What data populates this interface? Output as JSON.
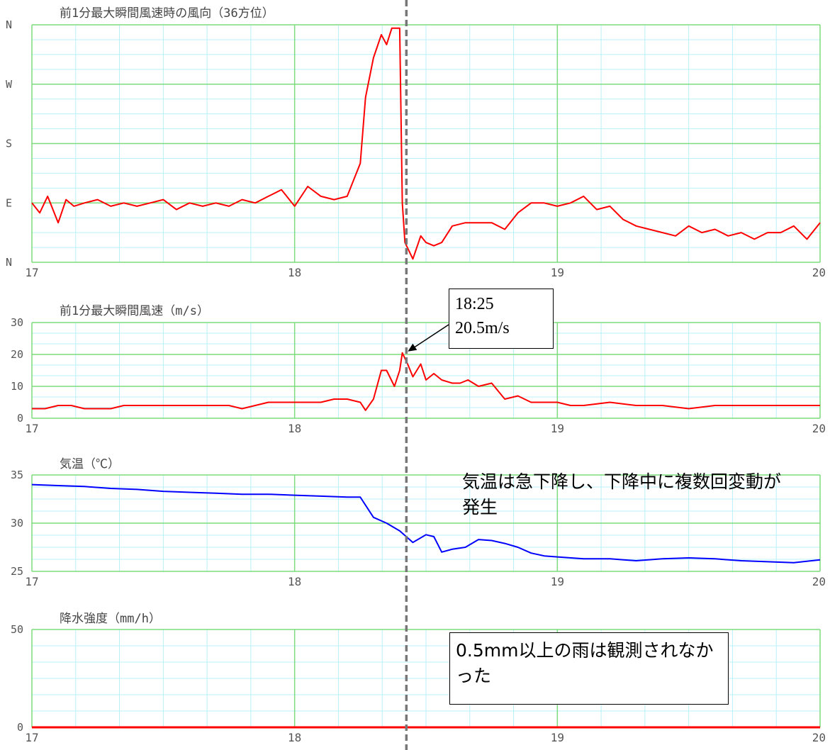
{
  "chart_data": [
    {
      "type": "line",
      "title": "前1分最大瞬間風速時の風向（36方位）",
      "yticks": [
        "N",
        "W",
        "S",
        "E",
        "N"
      ],
      "ylim": [
        0,
        360
      ],
      "xticks": [
        "17",
        "18",
        "19",
        "20"
      ],
      "xlim": [
        17,
        20
      ],
      "grid": true,
      "series": [
        {
          "color": "#ff0000",
          "x": [
            17.0,
            17.03,
            17.06,
            17.1,
            17.13,
            17.16,
            17.2,
            17.25,
            17.3,
            17.35,
            17.4,
            17.45,
            17.5,
            17.55,
            17.6,
            17.65,
            17.7,
            17.75,
            17.8,
            17.85,
            17.9,
            17.95,
            18.0,
            18.05,
            18.1,
            18.15,
            18.2,
            18.25,
            18.27,
            18.3,
            18.33,
            18.35,
            18.37,
            18.4,
            18.41,
            18.42,
            18.45,
            18.48,
            18.5,
            18.53,
            18.56,
            18.6,
            18.65,
            18.7,
            18.75,
            18.8,
            18.85,
            18.9,
            18.95,
            19.0,
            19.05,
            19.1,
            19.15,
            19.2,
            19.25,
            19.3,
            19.35,
            19.4,
            19.45,
            19.5,
            19.55,
            19.6,
            19.65,
            19.7,
            19.75,
            19.8,
            19.85,
            19.9,
            19.95,
            20.0
          ],
          "values": [
            90,
            75,
            100,
            60,
            95,
            85,
            90,
            95,
            85,
            90,
            85,
            90,
            95,
            80,
            90,
            85,
            90,
            85,
            95,
            90,
            100,
            110,
            85,
            115,
            100,
            95,
            100,
            150,
            250,
            310,
            345,
            330,
            355,
            355,
            90,
            30,
            5,
            40,
            30,
            25,
            30,
            55,
            60,
            60,
            60,
            50,
            75,
            90,
            90,
            85,
            90,
            100,
            80,
            85,
            65,
            55,
            50,
            45,
            40,
            55,
            45,
            50,
            40,
            45,
            35,
            45,
            45,
            55,
            35,
            60
          ]
        }
      ]
    },
    {
      "type": "line",
      "title": "前1分最大瞬間風速（m/s）",
      "yticks": [
        "0",
        "10",
        "20",
        "30"
      ],
      "ylim": [
        0,
        30
      ],
      "xticks": [
        "17",
        "18",
        "19",
        "20"
      ],
      "xlim": [
        17,
        20
      ],
      "grid": true,
      "series": [
        {
          "color": "#ff0000",
          "x": [
            17.0,
            17.05,
            17.1,
            17.15,
            17.2,
            17.25,
            17.3,
            17.35,
            17.4,
            17.45,
            17.5,
            17.55,
            17.6,
            17.65,
            17.7,
            17.75,
            17.8,
            17.85,
            17.9,
            17.95,
            18.0,
            18.05,
            18.1,
            18.15,
            18.2,
            18.25,
            18.27,
            18.3,
            18.33,
            18.35,
            18.38,
            18.4,
            18.41,
            18.43,
            18.45,
            18.48,
            18.5,
            18.53,
            18.56,
            18.6,
            18.63,
            18.66,
            18.7,
            18.75,
            18.8,
            18.85,
            18.9,
            18.95,
            19.0,
            19.05,
            19.1,
            19.2,
            19.3,
            19.4,
            19.5,
            19.6,
            19.7,
            19.8,
            19.9,
            20.0
          ],
          "values": [
            3,
            3,
            4,
            4,
            3,
            3,
            3,
            4,
            4,
            4,
            4,
            4,
            4,
            4,
            4,
            4,
            3,
            4,
            5,
            5,
            5,
            5,
            5,
            6,
            6,
            5,
            2.5,
            6,
            15,
            15,
            10,
            15,
            20.5,
            17,
            13,
            17,
            12,
            14,
            12,
            11,
            11,
            12,
            10,
            11,
            6,
            7,
            5,
            5,
            5,
            4,
            4,
            5,
            4,
            4,
            3,
            4,
            4,
            4,
            4,
            4
          ]
        }
      ],
      "callout": {
        "line1": "18:25",
        "line2": "20.5m/s",
        "x": 18.42,
        "y": 20.5
      }
    },
    {
      "type": "line",
      "title": "気温（℃）",
      "yticks": [
        "25",
        "30",
        "35"
      ],
      "ylim": [
        25,
        35
      ],
      "xticks": [
        "17",
        "18",
        "19",
        "20"
      ],
      "xlim": [
        17,
        20
      ],
      "grid": true,
      "series": [
        {
          "color": "#0000ff",
          "x": [
            17.0,
            17.1,
            17.2,
            17.3,
            17.4,
            17.5,
            17.6,
            17.7,
            17.8,
            17.9,
            18.0,
            18.1,
            18.2,
            18.25,
            18.3,
            18.35,
            18.4,
            18.45,
            18.5,
            18.53,
            18.56,
            18.6,
            18.65,
            18.7,
            18.75,
            18.8,
            18.85,
            18.9,
            18.95,
            19.0,
            19.1,
            19.2,
            19.3,
            19.4,
            19.5,
            19.6,
            19.7,
            19.8,
            19.9,
            20.0
          ],
          "values": [
            34,
            33.9,
            33.8,
            33.6,
            33.5,
            33.3,
            33.2,
            33.1,
            33.0,
            33.0,
            32.9,
            32.8,
            32.7,
            32.7,
            30.6,
            30.0,
            29.2,
            28.0,
            28.8,
            28.6,
            27.0,
            27.3,
            27.5,
            28.3,
            28.2,
            27.9,
            27.5,
            26.9,
            26.6,
            26.5,
            26.3,
            26.3,
            26.1,
            26.3,
            26.4,
            26.3,
            26.1,
            26.0,
            25.9,
            26.2
          ]
        }
      ],
      "annotation": "気温は急下降し、下降中に複数回変動が発生"
    },
    {
      "type": "line",
      "title": "降水強度（mm/h）",
      "yticks": [
        "0",
        "50"
      ],
      "ylim": [
        0,
        50
      ],
      "xticks": [
        "17",
        "18",
        "19",
        "20"
      ],
      "xlim": [
        17,
        20
      ],
      "grid": true,
      "series": [
        {
          "color": "#ff0000",
          "x": [
            17.0,
            20.0
          ],
          "values": [
            0,
            0
          ]
        }
      ],
      "annotation": "0.5mm以上の雨は観測されなかった"
    }
  ],
  "marker_time": 18.42,
  "colors": {
    "grid_major": "#7ddc7d",
    "grid_minor": "#b9f0f8",
    "axis_label": "#555555",
    "marker_line": "#777777"
  }
}
